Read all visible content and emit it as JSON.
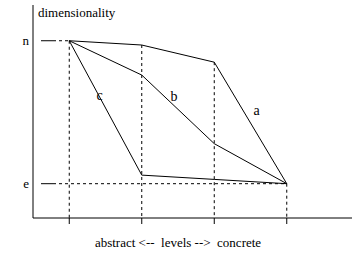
{
  "chart_data": {
    "type": "line",
    "y_label": "dimensionality",
    "x_label": "abstract <--  levels -->  concrete",
    "x": [
      1,
      2,
      3,
      4
    ],
    "xlim": [
      0.5,
      4.9
    ],
    "xticks": [
      1,
      2,
      3,
      4
    ],
    "ylim": [
      -2.4,
      12.5
    ],
    "yticks": [
      {
        "value": 10,
        "label": "n"
      },
      {
        "value": 0,
        "label": "e"
      }
    ],
    "tick_labels": "y",
    "color": "#000000",
    "series": [
      {
        "name": "a",
        "values": [
          10,
          9.7,
          8.5,
          0
        ]
      },
      {
        "name": "b",
        "values": [
          10,
          7.6,
          2.8,
          0
        ]
      },
      {
        "name": "c",
        "values": [
          10,
          0.6,
          0.3,
          0
        ]
      }
    ]
  }
}
